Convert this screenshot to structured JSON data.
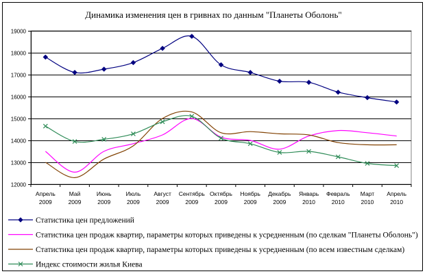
{
  "chart_data": {
    "type": "line",
    "title": "Динамика изменения цен в гривнах по данным \"Планеты Оболонь\"",
    "xlabel": "",
    "ylabel": "",
    "ylim": [
      12000,
      19000
    ],
    "yticks": [
      12000,
      13000,
      14000,
      15000,
      16000,
      17000,
      18000,
      19000
    ],
    "grid": true,
    "legend_position": "bottom",
    "categories": [
      [
        "Апрель",
        "2009"
      ],
      [
        "Май",
        "2009"
      ],
      [
        "Июнь",
        "2009"
      ],
      [
        "Июль",
        "2009"
      ],
      [
        "Август",
        "2009"
      ],
      [
        "Сентябрь",
        "2009"
      ],
      [
        "Октябрь",
        "2009"
      ],
      [
        "Ноябрь",
        "2009"
      ],
      [
        "Декабрь",
        "2009"
      ],
      [
        "Январь",
        "2010"
      ],
      [
        "Февраль",
        "2010"
      ],
      [
        "Март",
        "2010"
      ],
      [
        "Апрель",
        "2010"
      ]
    ],
    "series": [
      {
        "name": "Статистика цен предложений",
        "color": "#000080",
        "marker": "diamond",
        "values": [
          17800,
          17100,
          17250,
          17550,
          18200,
          18750,
          17450,
          17100,
          16700,
          16650,
          16200,
          15950,
          15750
        ]
      },
      {
        "name": "Статистика цен продаж квартир, параметры которых приведены к усредненным (по сделкам \"Планеты Оболонь\")",
        "color": "#ff00ff",
        "marker": "none",
        "values": [
          13500,
          12550,
          13500,
          13850,
          14250,
          15000,
          14150,
          14000,
          13600,
          14200,
          14450,
          14350,
          14200
        ]
      },
      {
        "name": "Статистика цен продаж квартир, параметры которых приведены к усредненным (по всем известным сделкам)",
        "color": "#804000",
        "marker": "none",
        "values": [
          13000,
          12300,
          13150,
          13750,
          15000,
          15300,
          14350,
          14400,
          14300,
          14250,
          13900,
          13800,
          13800
        ]
      },
      {
        "name": "Индекс стоимости жилья Киева",
        "color": "#2e8b57",
        "marker": "x",
        "values": [
          14650,
          13950,
          14050,
          14300,
          14850,
          15100,
          14100,
          13850,
          13450,
          13500,
          13250,
          12950,
          12850
        ]
      }
    ]
  }
}
